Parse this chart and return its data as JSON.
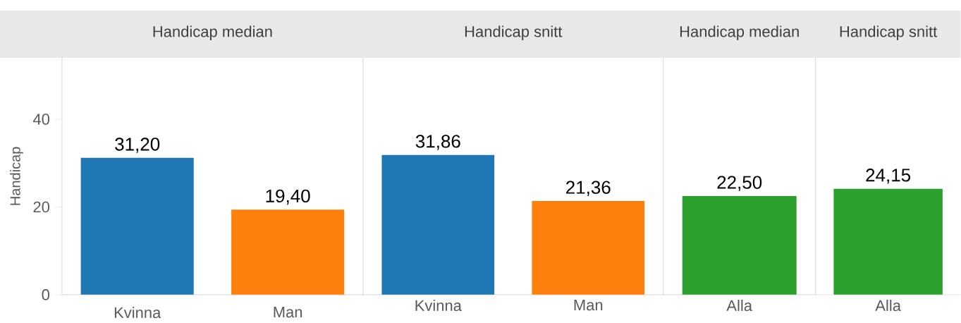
{
  "chart_data": [
    {
      "type": "bar",
      "title": "Handicap median",
      "ylabel": "Handicap",
      "categories": [
        "Kvinna",
        "Man"
      ],
      "values": [
        31.2,
        19.4
      ],
      "colors": [
        "#1f77b4",
        "#ff7f0e"
      ],
      "value_labels": [
        "31,20",
        "19,40"
      ],
      "ylim": [
        0,
        54
      ],
      "yticks": [
        0,
        20,
        40
      ]
    },
    {
      "type": "bar",
      "title": "Handicap snitt",
      "categories": [
        "Kvinna",
        "Man"
      ],
      "values": [
        31.86,
        21.36
      ],
      "colors": [
        "#1f77b4",
        "#ff7f0e"
      ],
      "value_labels": [
        "31,86",
        "21,36"
      ],
      "ylim": [
        0,
        54
      ],
      "yticks": [
        0,
        20,
        40
      ],
      "tick_labels": "x"
    },
    {
      "type": "bar",
      "title": "Handicap median",
      "categories": [
        "Alla"
      ],
      "values": [
        22.5
      ],
      "colors": [
        "#2ca02c"
      ],
      "value_labels": [
        "22,50"
      ],
      "ylim": [
        0,
        54
      ],
      "yticks": [
        0,
        20,
        40
      ],
      "tick_labels": "x"
    },
    {
      "type": "bar",
      "title": "Handicap snitt",
      "categories": [
        "Alla"
      ],
      "values": [
        24.15
      ],
      "colors": [
        "#2ca02c"
      ],
      "value_labels": [
        "24,15"
      ],
      "ylim": [
        0,
        54
      ],
      "yticks": [
        0,
        20,
        40
      ],
      "tick_labels": "x"
    }
  ]
}
